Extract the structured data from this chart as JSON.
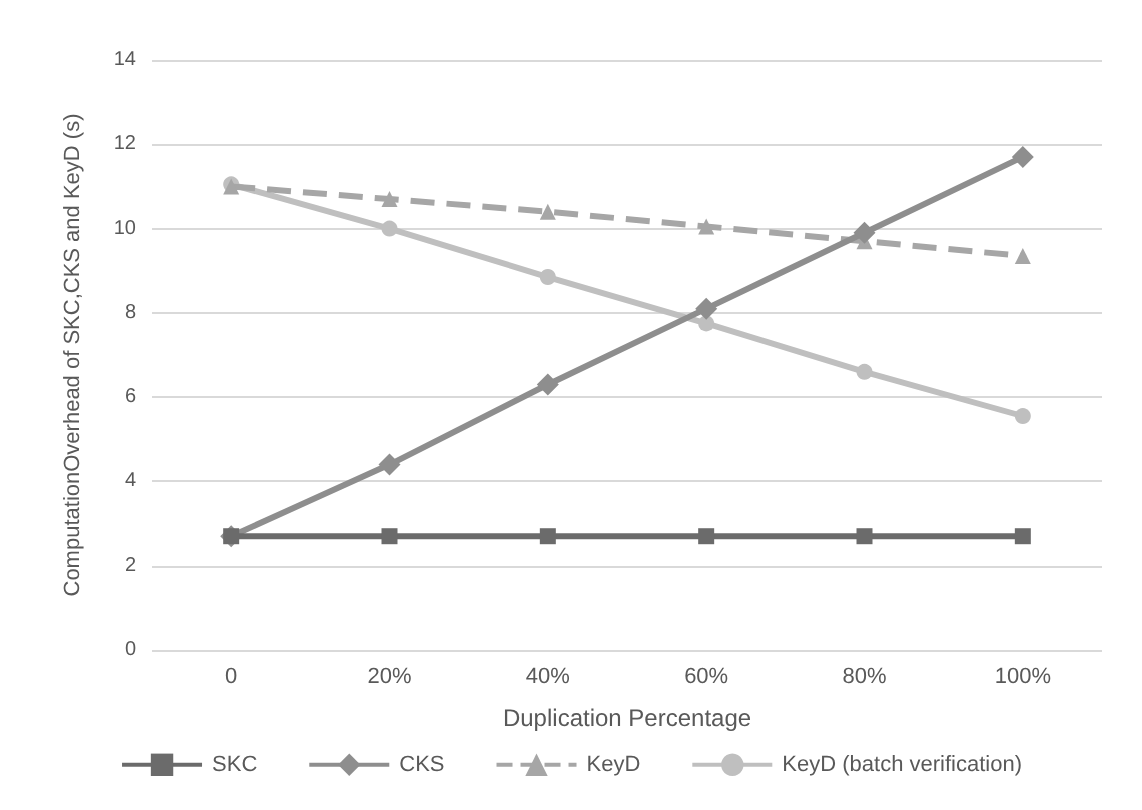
{
  "chart_data": {
    "type": "line",
    "xlabel": "Duplication Percentage",
    "ylabel": "ComputationOverhead of SKC,CKS and KeyD (s)",
    "categories": [
      "0",
      "20%",
      "40%",
      "60%",
      "80%",
      "100%"
    ],
    "series": [
      {
        "name": "SKC",
        "color": "#6b6b6b",
        "marker": "square",
        "line_style": "solid",
        "values": [
          2.7,
          2.7,
          2.7,
          2.7,
          2.7,
          2.7
        ]
      },
      {
        "name": "CKS",
        "color": "#8e8e8e",
        "marker": "diamond",
        "line_style": "solid",
        "values": [
          2.7,
          4.4,
          6.3,
          8.1,
          9.9,
          11.7
        ]
      },
      {
        "name": "KeyD",
        "color": "#a6a6a6",
        "marker": "triangle",
        "line_style": "dashed",
        "values": [
          11.0,
          10.7,
          10.4,
          10.05,
          9.7,
          9.35
        ]
      },
      {
        "name": "KeyD (batch verification)",
        "color": "#bfbfbf",
        "marker": "circle",
        "line_style": "solid",
        "values": [
          11.05,
          10.0,
          8.85,
          7.75,
          6.6,
          5.55
        ]
      }
    ],
    "ylim": [
      0,
      14
    ],
    "yticks": [
      0,
      2,
      4,
      6,
      8,
      10,
      12,
      14
    ],
    "grid": "y",
    "legend": "bottom"
  }
}
